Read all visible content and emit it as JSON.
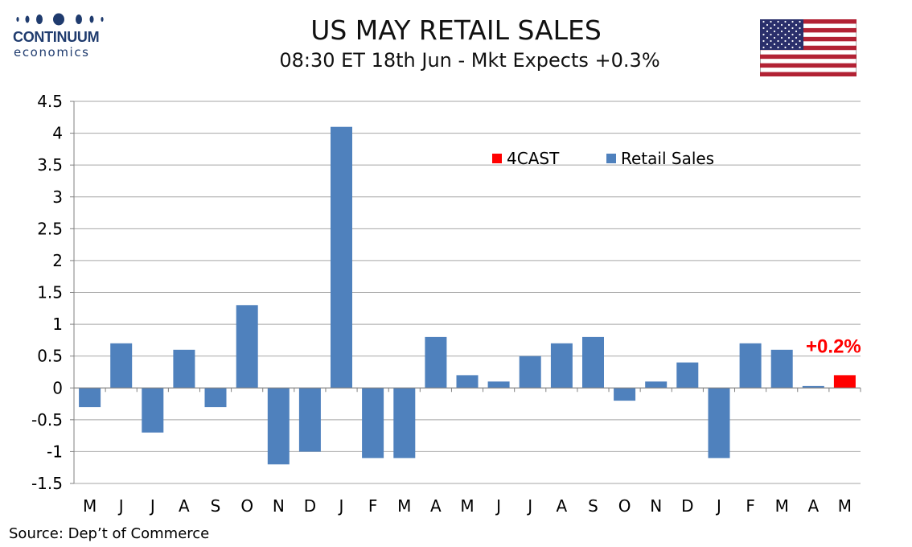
{
  "logo": {
    "word": "CONTINUUM",
    "sub": "economics"
  },
  "header": {
    "title": "US MAY RETAIL SALES",
    "subtitle": "08:30 ET 18th Jun - Mkt Expects +0.3%"
  },
  "flag_icon": "us-flag-icon",
  "source": "Source: Dep’t of Commerce",
  "colors": {
    "retail": "#4f81bd",
    "forecast": "#ff0000",
    "grid": "#a6a6a6",
    "logo": "#1f3b6e"
  },
  "chart_data": {
    "type": "bar",
    "categories": [
      "M",
      "J",
      "J",
      "A",
      "S",
      "O",
      "N",
      "D",
      "J",
      "F",
      "M",
      "A",
      "M",
      "J",
      "J",
      "A",
      "S",
      "O",
      "N",
      "D",
      "J",
      "F",
      "M",
      "A",
      "M"
    ],
    "series": [
      {
        "name": "Retail Sales",
        "color": "#4f81bd",
        "values": [
          -0.3,
          0.7,
          -0.7,
          0.6,
          -0.3,
          1.3,
          -1.2,
          -1.0,
          4.1,
          -1.1,
          -1.1,
          0.8,
          0.2,
          0.1,
          0.5,
          0.7,
          0.8,
          -0.2,
          0.1,
          0.4,
          -1.1,
          0.7,
          0.6,
          0.03,
          null
        ]
      },
      {
        "name": "4CAST",
        "color": "#ff0000",
        "values": [
          null,
          null,
          null,
          null,
          null,
          null,
          null,
          null,
          null,
          null,
          null,
          null,
          null,
          null,
          null,
          null,
          null,
          null,
          null,
          null,
          null,
          null,
          null,
          null,
          0.2
        ]
      }
    ],
    "yticks": [
      "4.5",
      "4",
      "3.5",
      "3",
      "2.5",
      "2",
      "1.5",
      "1",
      "0.5",
      "0",
      "-0.5",
      "-1",
      "-1.5"
    ],
    "ylim": [
      -1.5,
      4.5
    ],
    "grid": true,
    "legend": {
      "placement": "top-right",
      "items": [
        "4CAST",
        "Retail Sales"
      ]
    },
    "annotation": "+0.2%"
  }
}
